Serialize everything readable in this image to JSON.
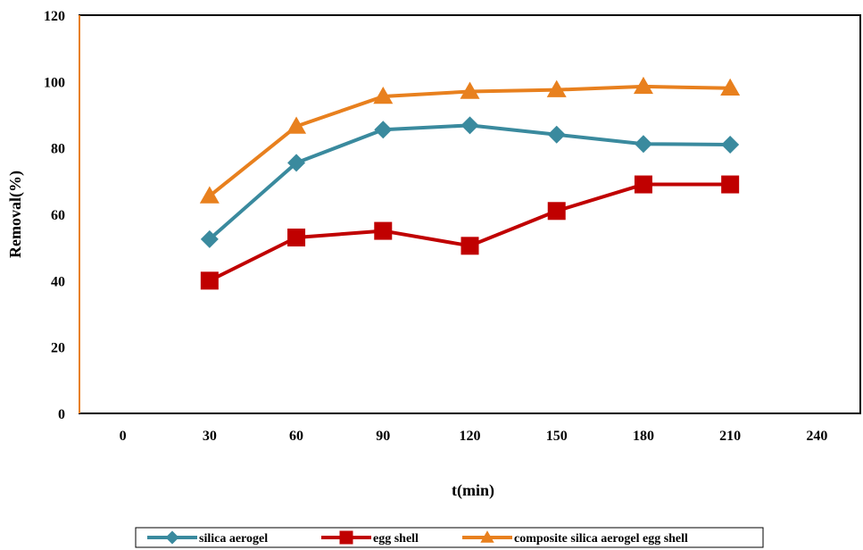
{
  "chart_data": {
    "type": "line",
    "title": "",
    "xlabel": "t(min)",
    "ylabel": "Removal(%)",
    "xlim": [
      -15,
      255
    ],
    "ylim": [
      0,
      120
    ],
    "xticks": [
      0,
      30,
      60,
      90,
      120,
      150,
      180,
      210,
      240
    ],
    "yticks": [
      0,
      20,
      40,
      60,
      80,
      100,
      120
    ],
    "x": [
      30,
      60,
      90,
      120,
      150,
      180,
      210
    ],
    "grid": false,
    "legend_position": "bottom",
    "series": [
      {
        "name": "silica aerogel",
        "color": "#3A8A9E",
        "marker": "diamond",
        "values": [
          52.5,
          75.5,
          85.5,
          86.8,
          84.0,
          81.2,
          81.0
        ]
      },
      {
        "name": "egg shell",
        "color": "#C00000",
        "marker": "square",
        "values": [
          40.0,
          53.0,
          55.0,
          50.5,
          61.0,
          69.0,
          69.0
        ]
      },
      {
        "name": "composite silica aerogel egg shell",
        "color": "#E8801E",
        "marker": "triangle",
        "values": [
          65.5,
          86.5,
          95.5,
          97.0,
          97.5,
          98.5,
          98.0
        ]
      }
    ]
  }
}
